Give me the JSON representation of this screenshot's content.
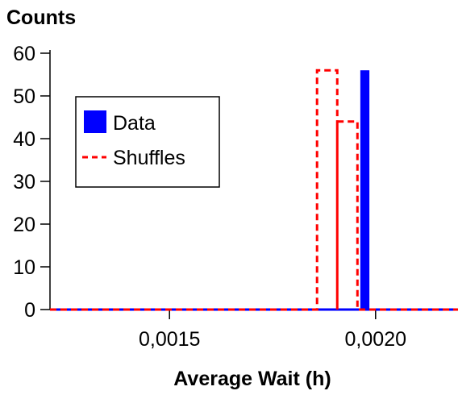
{
  "chart_data": {
    "type": "histogram",
    "title": "",
    "ylabel": "Counts",
    "xlabel": "Average Wait (h)",
    "xlim": [
      0.00121,
      0.0022
    ],
    "ylim": [
      0,
      60
    ],
    "x_ticks": [
      {
        "value": 0.0015,
        "label": "0,0015"
      },
      {
        "value": 0.002,
        "label": "0,0020"
      }
    ],
    "y_ticks": [
      {
        "value": 0,
        "label": "0"
      },
      {
        "value": 10,
        "label": "10"
      },
      {
        "value": 20,
        "label": "20"
      },
      {
        "value": 30,
        "label": "30"
      },
      {
        "value": 40,
        "label": "40"
      },
      {
        "value": 50,
        "label": "50"
      },
      {
        "value": 60,
        "label": "60"
      }
    ],
    "grid": false,
    "legend": {
      "placement": "upper-left"
    },
    "series": [
      {
        "name": "Data",
        "style": "filled-bar",
        "color": "#0000ff",
        "bins": [
          {
            "x0": 0.001963,
            "x1": 0.001985,
            "count": 56
          }
        ]
      },
      {
        "name": "Shuffles",
        "style": "dashed-step",
        "color": "#ff0000",
        "bins": [
          {
            "x0": 0.001858,
            "x1": 0.001907,
            "count": 56
          },
          {
            "x0": 0.001907,
            "x1": 0.001956,
            "count": 44
          }
        ]
      }
    ]
  }
}
